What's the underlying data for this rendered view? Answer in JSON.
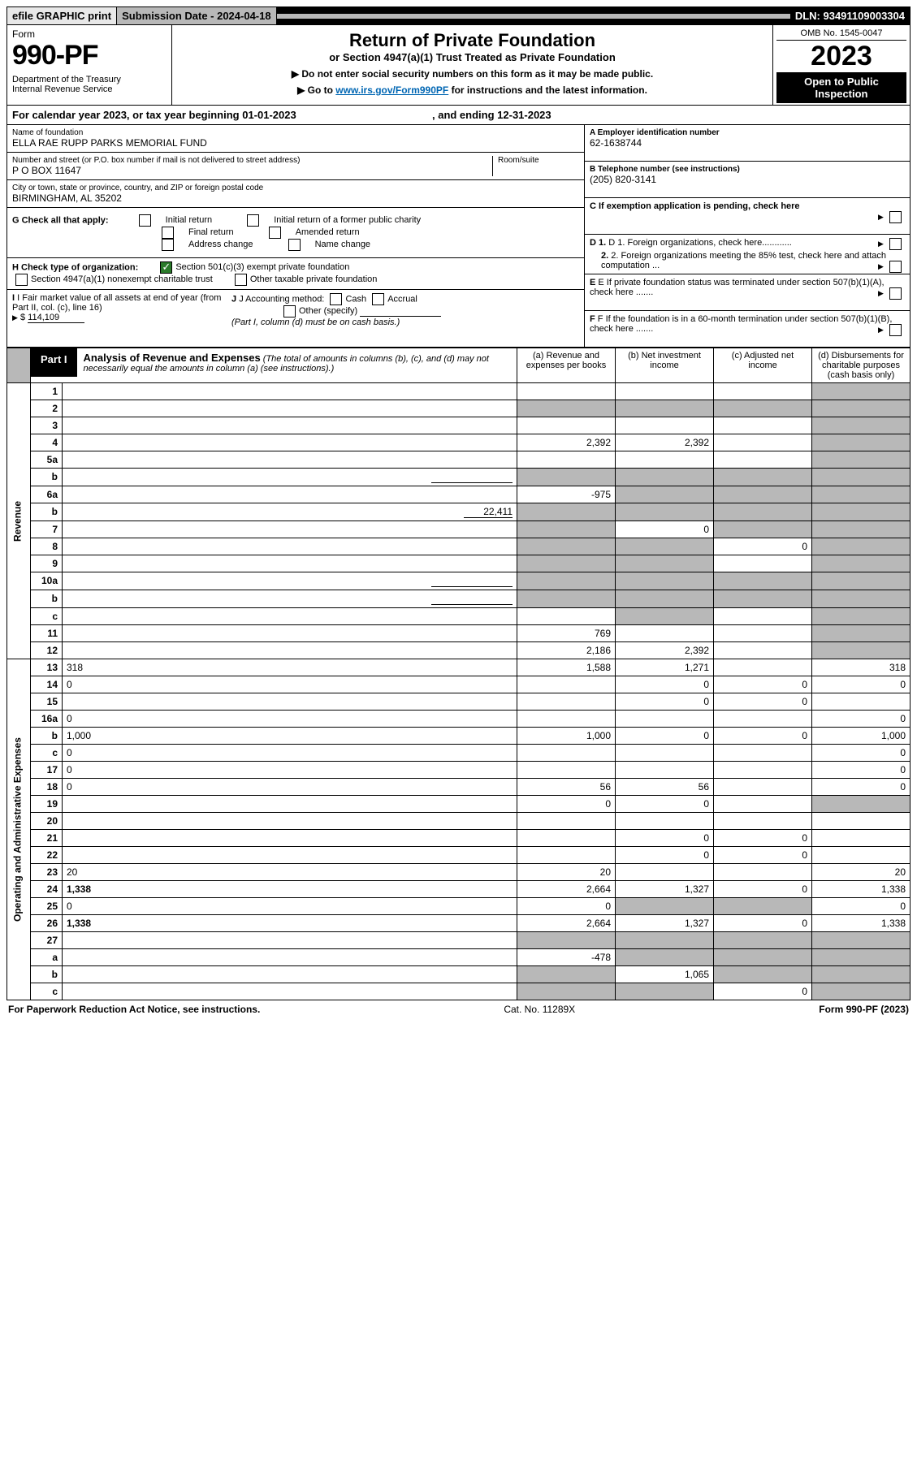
{
  "top": {
    "efile": "efile GRAPHIC print",
    "submission": "Submission Date - 2024-04-18",
    "dln": "DLN: 93491109003304"
  },
  "header": {
    "form_label": "Form",
    "form_number": "990-PF",
    "dept": "Department of the Treasury\nInternal Revenue Service",
    "title": "Return of Private Foundation",
    "subtitle": "or Section 4947(a)(1) Trust Treated as Private Foundation",
    "note1": "▶ Do not enter social security numbers on this form as it may be made public.",
    "note2_pre": "▶ Go to ",
    "note2_link": "www.irs.gov/Form990PF",
    "note2_post": " for instructions and the latest information.",
    "omb": "OMB No. 1545-0047",
    "year": "2023",
    "open": "Open to Public Inspection"
  },
  "calendar": {
    "text": "For calendar year 2023, or tax year beginning 01-01-2023",
    "ending": ", and ending 12-31-2023"
  },
  "entity": {
    "name_lbl": "Name of foundation",
    "name": "ELLA RAE RUPP PARKS MEMORIAL FUND",
    "addr_lbl": "Number and street (or P.O. box number if mail is not delivered to street address)",
    "room_lbl": "Room/suite",
    "addr": "P O BOX 11647",
    "city_lbl": "City or town, state or province, country, and ZIP or foreign postal code",
    "city": "BIRMINGHAM, AL  35202",
    "A_lbl": "A Employer identification number",
    "A_val": "62-1638744",
    "B_lbl": "B Telephone number (see instructions)",
    "B_val": "(205) 820-3141",
    "C_lbl": "C If exemption application is pending, check here",
    "D1_lbl": "D 1. Foreign organizations, check here............",
    "D2_lbl": "2. Foreign organizations meeting the 85% test, check here and attach computation ...",
    "E_lbl": "E  If private foundation status was terminated under section 507(b)(1)(A), check here .......",
    "F_lbl": "F  If the foundation is in a 60-month termination under section 507(b)(1)(B), check here .......",
    "G_lbl": "G Check all that apply:",
    "G_opts": [
      "Initial return",
      "Initial return of a former public charity",
      "Final return",
      "Amended return",
      "Address change",
      "Name change"
    ],
    "H_lbl": "H Check type of organization:",
    "H_opt1": "Section 501(c)(3) exempt private foundation",
    "H_opt2": "Section 4947(a)(1) nonexempt charitable trust",
    "H_opt3": "Other taxable private foundation",
    "I_lbl": "I Fair market value of all assets at end of year (from Part II, col. (c), line 16)",
    "I_val": "114,109",
    "J_lbl": "J Accounting method:",
    "J_opts": [
      "Cash",
      "Accrual"
    ],
    "J_other": "Other (specify)",
    "J_note": "(Part I, column (d) must be on cash basis.)"
  },
  "part1": {
    "tab": "Part I",
    "title": "Analysis of Revenue and Expenses",
    "title_note": "(The total of amounts in columns (b), (c), and (d) may not necessarily equal the amounts in column (a) (see instructions).)",
    "cols": {
      "a": "(a)  Revenue and expenses per books",
      "b": "(b)  Net investment income",
      "c": "(c)  Adjusted net income",
      "d": "(d)  Disbursements for charitable purposes (cash basis only)"
    },
    "side_rev": "Revenue",
    "side_exp": "Operating and Administrative Expenses",
    "rows": [
      {
        "n": "1",
        "d": "",
        "a": "",
        "b": "",
        "c": "",
        "shade_d": true
      },
      {
        "n": "2",
        "d": "",
        "a": "",
        "b": "",
        "c": "",
        "shade_all": true,
        "bold_not": true
      },
      {
        "n": "3",
        "d": "",
        "a": "",
        "b": "",
        "c": "",
        "shade_d": true
      },
      {
        "n": "4",
        "d": "",
        "a": "2,392",
        "b": "2,392",
        "c": "",
        "shade_d": true
      },
      {
        "n": "5a",
        "d": "",
        "a": "",
        "b": "",
        "c": "",
        "shade_d": true
      },
      {
        "n": "b",
        "d": "",
        "a": "",
        "b": "",
        "c": "",
        "shade_all": true,
        "inline_box": true
      },
      {
        "n": "6a",
        "d": "",
        "a": "-975",
        "b": "",
        "c": "",
        "shade_bcd": true
      },
      {
        "n": "b",
        "d": "",
        "a": "",
        "b": "",
        "c": "",
        "inline_val": "22,411",
        "shade_all": true
      },
      {
        "n": "7",
        "d": "",
        "a": "",
        "b": "0",
        "c": "",
        "shade_a": true,
        "shade_cd": true
      },
      {
        "n": "8",
        "d": "",
        "a": "",
        "b": "",
        "c": "0",
        "shade_ab": true,
        "shade_d": true
      },
      {
        "n": "9",
        "d": "",
        "a": "",
        "b": "",
        "c": "",
        "shade_ab": true,
        "shade_d": true
      },
      {
        "n": "10a",
        "d": "",
        "a": "",
        "b": "",
        "c": "",
        "shade_all": true,
        "inline_box": true
      },
      {
        "n": "b",
        "d": "",
        "a": "",
        "b": "",
        "c": "",
        "shade_all": true,
        "inline_box": true
      },
      {
        "n": "c",
        "d": "",
        "a": "",
        "b": "",
        "c": "",
        "shade_b": true,
        "shade_d": true
      },
      {
        "n": "11",
        "d": "",
        "a": "769",
        "b": "",
        "c": "",
        "shade_d": true
      },
      {
        "n": "12",
        "d": "",
        "a": "2,186",
        "b": "2,392",
        "c": "",
        "bold": true,
        "shade_d": true
      },
      {
        "n": "13",
        "d": "318",
        "a": "1,588",
        "b": "1,271",
        "c": ""
      },
      {
        "n": "14",
        "d": "0",
        "a": "",
        "b": "0",
        "c": "0"
      },
      {
        "n": "15",
        "d": "",
        "a": "",
        "b": "0",
        "c": "0"
      },
      {
        "n": "16a",
        "d": "0",
        "a": "",
        "b": "",
        "c": ""
      },
      {
        "n": "b",
        "d": "1,000",
        "a": "1,000",
        "b": "0",
        "c": "0"
      },
      {
        "n": "c",
        "d": "0",
        "a": "",
        "b": "",
        "c": ""
      },
      {
        "n": "17",
        "d": "0",
        "a": "",
        "b": "",
        "c": ""
      },
      {
        "n": "18",
        "d": "0",
        "a": "56",
        "b": "56",
        "c": ""
      },
      {
        "n": "19",
        "d": "",
        "a": "0",
        "b": "0",
        "c": "",
        "shade_d": true
      },
      {
        "n": "20",
        "d": "",
        "a": "",
        "b": "",
        "c": ""
      },
      {
        "n": "21",
        "d": "",
        "a": "",
        "b": "0",
        "c": "0"
      },
      {
        "n": "22",
        "d": "",
        "a": "",
        "b": "0",
        "c": "0"
      },
      {
        "n": "23",
        "d": "20",
        "a": "20",
        "b": "",
        "c": ""
      },
      {
        "n": "24",
        "d": "1,338",
        "a": "2,664",
        "b": "1,327",
        "c": "0",
        "bold": true
      },
      {
        "n": "25",
        "d": "0",
        "a": "0",
        "b": "",
        "c": "",
        "shade_bc": true
      },
      {
        "n": "26",
        "d": "1,338",
        "a": "2,664",
        "b": "1,327",
        "c": "0",
        "bold": true
      },
      {
        "n": "27",
        "d": "",
        "a": "",
        "b": "",
        "c": "",
        "shade_all": true
      },
      {
        "n": "a",
        "d": "",
        "a": "-478",
        "b": "",
        "c": "",
        "bold": true,
        "shade_bcd": true
      },
      {
        "n": "b",
        "d": "",
        "a": "",
        "b": "1,065",
        "c": "",
        "bold": true,
        "shade_a": true,
        "shade_cd": true
      },
      {
        "n": "c",
        "d": "",
        "a": "",
        "b": "",
        "c": "0",
        "bold": true,
        "shade_ab": true,
        "shade_d": true
      }
    ]
  },
  "footer": {
    "left": "For Paperwork Reduction Act Notice, see instructions.",
    "mid": "Cat. No. 11289X",
    "right": "Form 990-PF (2023)"
  },
  "colors": {
    "shade": "#b8b8b8",
    "link": "#0066b3",
    "check": "#2a7a2a"
  }
}
